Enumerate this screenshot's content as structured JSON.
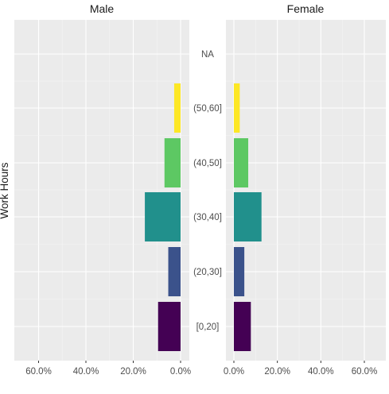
{
  "chart_data": {
    "type": "bar",
    "orientation": "horizontal",
    "layout": "population-pyramid",
    "ylabel": "Work Hours",
    "categories": [
      "[0,20]",
      "(20,30]",
      "(30,40]",
      "(40,50]",
      "(50,60]",
      "NA"
    ],
    "x_ticks": [
      "0.0%",
      "20.0%",
      "40.0%",
      "60.0%"
    ],
    "xlim": [
      0,
      0.66
    ],
    "grid": true,
    "legend": "none",
    "colors": [
      "#440154",
      "#3B528B",
      "#21908C",
      "#5DC863",
      "#FDE725",
      "#BFBFBF"
    ],
    "panels": [
      {
        "title": "Male",
        "direction": "reversed",
        "values": [
          0.095,
          0.052,
          0.151,
          0.068,
          0.027,
          0
        ]
      },
      {
        "title": "Female",
        "direction": "normal",
        "values": [
          0.078,
          0.048,
          0.127,
          0.066,
          0.027,
          0
        ]
      }
    ]
  }
}
